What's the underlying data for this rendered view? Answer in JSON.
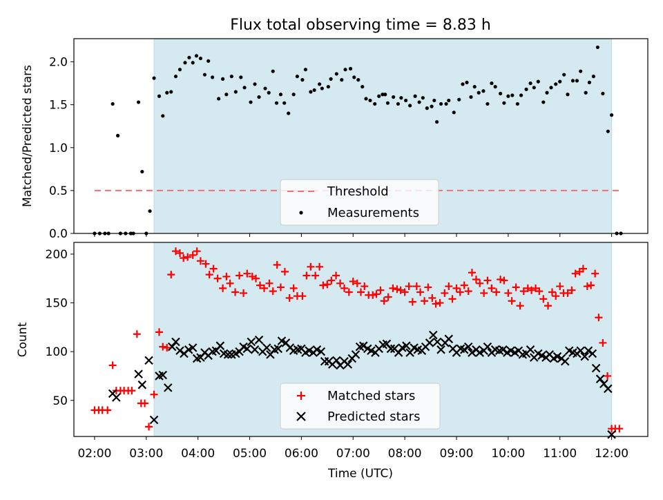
{
  "title": "Flux total observing time = 8.83 h",
  "colors": {
    "shade": "#d4eaf0",
    "shade_edge": "#b9dbe4",
    "threshold": "#f07070",
    "matched": "#ff0000",
    "predicted": "#000000",
    "measure": "#000000"
  },
  "chart_data": [
    {
      "type": "scatter",
      "ylabel": "Matched/Predicted stars",
      "ylim": [
        0,
        2.27
      ],
      "xlim": [
        1.6,
        12.7
      ],
      "yticks": [
        "0.0",
        "0.5",
        "1.0",
        "1.5",
        "2.0"
      ],
      "ytick_values": [
        0,
        0.5,
        1.0,
        1.5,
        2.0
      ],
      "shaded_span": [
        3.15,
        12.0
      ],
      "threshold": {
        "name": "Threshold",
        "value": 0.5,
        "x_range": [
          2.0,
          12.2
        ]
      },
      "legend": [
        "Threshold",
        "Measurements"
      ],
      "legend_position": "lower center",
      "series": [
        {
          "name": "Measurements",
          "x": [
            2.0,
            2.1,
            2.2,
            2.27,
            2.35,
            2.45,
            2.5,
            2.6,
            2.7,
            2.75,
            2.85,
            2.92,
            3.0,
            3.07,
            3.15,
            3.25,
            3.32,
            3.4,
            3.48,
            3.57,
            3.65,
            3.75,
            3.83,
            3.9,
            3.97,
            4.05,
            4.13,
            4.2,
            4.28,
            4.4,
            4.48,
            4.55,
            4.65,
            4.73,
            4.83,
            4.9,
            5.02,
            5.1,
            5.18,
            5.3,
            5.37,
            5.45,
            5.52,
            5.6,
            5.67,
            5.75,
            5.85,
            5.92,
            6.02,
            6.08,
            6.18,
            6.25,
            6.35,
            6.4,
            6.52,
            6.57,
            6.68,
            6.78,
            6.85,
            6.95,
            7.02,
            7.1,
            7.18,
            7.25,
            7.33,
            7.42,
            7.5,
            7.57,
            7.62,
            7.67,
            7.78,
            7.87,
            7.93,
            8.02,
            8.1,
            8.2,
            8.28,
            8.35,
            8.43,
            8.52,
            8.57,
            8.62,
            8.7,
            8.8,
            8.85,
            8.95,
            9.05,
            9.12,
            9.2,
            9.28,
            9.35,
            9.43,
            9.52,
            9.6,
            9.68,
            9.75,
            9.85,
            9.92,
            10.0,
            10.08,
            10.18,
            10.25,
            10.35,
            10.43,
            10.5,
            10.58,
            10.68,
            10.75,
            10.83,
            10.92,
            11.0,
            11.08,
            11.15,
            11.25,
            11.33,
            11.4,
            11.5,
            11.57,
            11.65,
            11.73,
            11.83,
            11.93,
            12.0,
            12.1,
            12.18
          ],
          "y": [
            0.0,
            0.0,
            0.0,
            0.0,
            1.51,
            1.14,
            0.0,
            0.0,
            0.0,
            0.0,
            1.53,
            0.72,
            0.0,
            0.26,
            1.81,
            1.6,
            1.37,
            1.64,
            1.65,
            1.83,
            1.91,
            1.99,
            2.05,
            1.99,
            2.07,
            2.04,
            1.85,
            2.01,
            1.82,
            1.57,
            1.8,
            1.62,
            1.83,
            1.65,
            1.82,
            1.7,
            1.53,
            1.74,
            1.59,
            1.69,
            1.64,
            1.89,
            1.52,
            1.62,
            1.52,
            1.4,
            1.62,
            1.83,
            1.79,
            1.91,
            1.65,
            1.67,
            1.74,
            1.69,
            1.71,
            1.8,
            1.86,
            1.79,
            1.91,
            1.92,
            1.82,
            1.79,
            1.71,
            1.57,
            1.55,
            1.51,
            1.6,
            1.62,
            1.62,
            1.52,
            1.59,
            1.51,
            1.58,
            1.55,
            1.49,
            1.6,
            1.53,
            1.58,
            1.46,
            1.48,
            1.55,
            1.3,
            1.51,
            1.51,
            1.55,
            1.41,
            1.56,
            1.74,
            1.76,
            1.59,
            1.71,
            1.64,
            1.66,
            1.51,
            1.75,
            1.71,
            1.63,
            1.52,
            1.6,
            1.61,
            1.51,
            1.61,
            1.68,
            1.75,
            1.7,
            1.77,
            1.53,
            1.64,
            1.7,
            1.74,
            1.77,
            1.85,
            1.62,
            1.78,
            1.78,
            1.89,
            1.64,
            1.76,
            1.83,
            2.17,
            1.63,
            1.19,
            1.38,
            0.0,
            0.0
          ]
        }
      ]
    },
    {
      "type": "scatter",
      "xlabel": "Time (UTC)",
      "ylabel": "Count",
      "ylim": [
        13,
        212
      ],
      "xlim": [
        1.6,
        12.7
      ],
      "yticks": [
        "50",
        "100",
        "150",
        "200"
      ],
      "ytick_values": [
        50,
        100,
        150,
        200
      ],
      "xticks": [
        "02:00",
        "03:00",
        "04:00",
        "05:00",
        "06:00",
        "07:00",
        "08:00",
        "09:00",
        "10:00",
        "11:00",
        "12:00"
      ],
      "xtick_values": [
        2,
        3,
        4,
        5,
        6,
        7,
        8,
        9,
        10,
        11,
        12
      ],
      "shaded_span": [
        3.15,
        12.0
      ],
      "legend": [
        "Matched stars",
        "Predicted stars"
      ],
      "legend_position": "lower center",
      "series": [
        {
          "name": "Matched stars",
          "marker": "plus",
          "x": [
            2.0,
            2.08,
            2.15,
            2.25,
            2.35,
            2.42,
            2.5,
            2.57,
            2.65,
            2.72,
            2.82,
            2.9,
            2.97,
            3.05,
            3.15,
            3.25,
            3.32,
            3.4,
            3.48,
            3.57,
            3.65,
            3.72,
            3.8,
            3.9,
            3.98,
            4.05,
            4.15,
            4.22,
            4.3,
            4.38,
            4.48,
            4.55,
            4.62,
            4.72,
            4.8,
            4.88,
            4.95,
            5.05,
            5.12,
            5.2,
            5.28,
            5.38,
            5.45,
            5.53,
            5.6,
            5.68,
            5.77,
            5.85,
            5.92,
            6.02,
            6.1,
            6.18,
            6.27,
            6.35,
            6.42,
            6.5,
            6.58,
            6.67,
            6.75,
            6.83,
            6.92,
            7.0,
            7.08,
            7.15,
            7.22,
            7.3,
            7.38,
            7.45,
            7.53,
            7.6,
            7.68,
            7.77,
            7.85,
            7.92,
            8.0,
            8.08,
            8.15,
            8.23,
            8.3,
            8.38,
            8.45,
            8.53,
            8.6,
            8.68,
            8.77,
            8.85,
            8.92,
            9.0,
            9.07,
            9.15,
            9.23,
            9.3,
            9.38,
            9.45,
            9.53,
            9.6,
            9.68,
            9.77,
            9.85,
            9.92,
            10.0,
            10.07,
            10.15,
            10.23,
            10.3,
            10.38,
            10.45,
            10.53,
            10.6,
            10.68,
            10.77,
            10.85,
            10.92,
            11.0,
            11.07,
            11.15,
            11.23,
            11.3,
            11.38,
            11.45,
            11.53,
            11.6,
            11.68,
            11.75,
            11.83,
            11.92,
            12.0,
            12.07,
            12.15
          ],
          "y": [
            40,
            40,
            40,
            40,
            86,
            60,
            60,
            60,
            60,
            60,
            118,
            47,
            47,
            23,
            56,
            120,
            105,
            104,
            179,
            203,
            201,
            196,
            197,
            199,
            203,
            193,
            190,
            179,
            185,
            175,
            165,
            177,
            170,
            161,
            178,
            160,
            180,
            177,
            175,
            168,
            165,
            170,
            162,
            189,
            166,
            182,
            155,
            165,
            157,
            157,
            178,
            187,
            178,
            187,
            168,
            169,
            173,
            178,
            170,
            165,
            161,
            172,
            170,
            161,
            167,
            158,
            158,
            159,
            163,
            152,
            156,
            165,
            164,
            163,
            161,
            167,
            151,
            167,
            161,
            152,
            166,
            155,
            149,
            150,
            160,
            167,
            154,
            165,
            161,
            168,
            162,
            181,
            174,
            170,
            160,
            173,
            165,
            161,
            174,
            173,
            160,
            152,
            166,
            147,
            162,
            165,
            163,
            165,
            162,
            154,
            147,
            161,
            157,
            167,
            160,
            160,
            163,
            180,
            182,
            185,
            167,
            168,
            180,
            135,
            109,
            75,
            21,
            21,
            21
          ]
        },
        {
          "name": "Predicted stars",
          "marker": "x",
          "x": [
            2.35,
            2.42,
            2.85,
            2.92,
            3.05,
            3.15,
            3.25,
            3.32,
            3.42,
            3.5,
            3.57,
            3.65,
            3.73,
            3.82,
            3.9,
            3.98,
            4.05,
            4.13,
            4.2,
            4.28,
            4.35,
            4.43,
            4.5,
            4.58,
            4.65,
            4.73,
            4.8,
            4.88,
            4.95,
            5.03,
            5.1,
            5.18,
            5.25,
            5.33,
            5.4,
            5.48,
            5.55,
            5.62,
            5.7,
            5.78,
            5.85,
            5.93,
            6.0,
            6.08,
            6.15,
            6.23,
            6.3,
            6.38,
            6.45,
            6.53,
            6.6,
            6.68,
            6.75,
            6.83,
            6.9,
            6.98,
            7.05,
            7.13,
            7.2,
            7.28,
            7.35,
            7.43,
            7.5,
            7.58,
            7.65,
            7.73,
            7.8,
            7.88,
            7.95,
            8.03,
            8.1,
            8.18,
            8.25,
            8.33,
            8.4,
            8.48,
            8.55,
            8.63,
            8.7,
            8.78,
            8.85,
            8.93,
            9.0,
            9.08,
            9.15,
            9.23,
            9.3,
            9.38,
            9.45,
            9.53,
            9.6,
            9.68,
            9.75,
            9.83,
            9.9,
            9.98,
            10.05,
            10.13,
            10.2,
            10.28,
            10.35,
            10.43,
            10.5,
            10.58,
            10.65,
            10.73,
            10.8,
            10.88,
            10.95,
            11.03,
            11.1,
            11.18,
            11.25,
            11.33,
            11.4,
            11.48,
            11.55,
            11.63,
            11.7,
            11.78,
            11.85,
            11.93,
            12.0
          ],
          "y": [
            57,
            53,
            77,
            66,
            91,
            30,
            75,
            76,
            63,
            105,
            110,
            101,
            98,
            102,
            104,
            93,
            94,
            99,
            96,
            100,
            101,
            106,
            98,
            97,
            97,
            98,
            100,
            105,
            103,
            110,
            102,
            112,
            100,
            104,
            97,
            102,
            103,
            111,
            109,
            104,
            101,
            102,
            103,
            99,
            101,
            99,
            102,
            100,
            90,
            90,
            87,
            91,
            86,
            90,
            87,
            93,
            97,
            105,
            106,
            103,
            101,
            99,
            103,
            107,
            108,
            103,
            103,
            99,
            104,
            106,
            99,
            104,
            102,
            101,
            105,
            109,
            117,
            110,
            102,
            109,
            113,
            103,
            99,
            103,
            102,
            105,
            99,
            102,
            99,
            101,
            105,
            99,
            102,
            101,
            102,
            99,
            101,
            99,
            101,
            97,
            98,
            102,
            94,
            98,
            96,
            94,
            97,
            93,
            95,
            93,
            90,
            101,
            99,
            98,
            101,
            95,
            101,
            98,
            83,
            72,
            67,
            62,
            15
          ]
        }
      ]
    }
  ]
}
